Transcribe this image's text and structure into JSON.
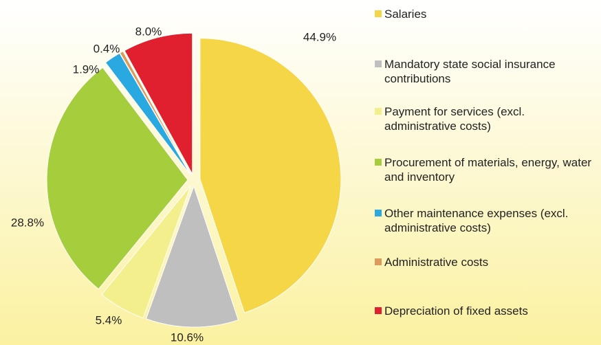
{
  "chart_data": {
    "type": "pie",
    "categories": [
      "Salaries",
      "Mandatory state social insurance contributions",
      "Payment for services (excl. administrative costs)",
      "Procurement of materials, energy, water and inventory",
      "Other maintenance expenses (excl. administrative costs)",
      "Administrative costs",
      "Depreciation of fixed assets"
    ],
    "values": [
      44.9,
      10.6,
      5.4,
      28.8,
      1.9,
      0.4,
      8.0
    ],
    "value_labels": [
      "44.9%",
      "10.6%",
      "5.4%",
      "28.8%",
      "1.9%",
      "0.4%",
      "8.0%"
    ],
    "colors": [
      "#f4d647",
      "#bfbfbf",
      "#f2ef8c",
      "#a6cd3c",
      "#2aa9e0",
      "#dc9a5c",
      "#e0202e"
    ],
    "legend": "right"
  }
}
